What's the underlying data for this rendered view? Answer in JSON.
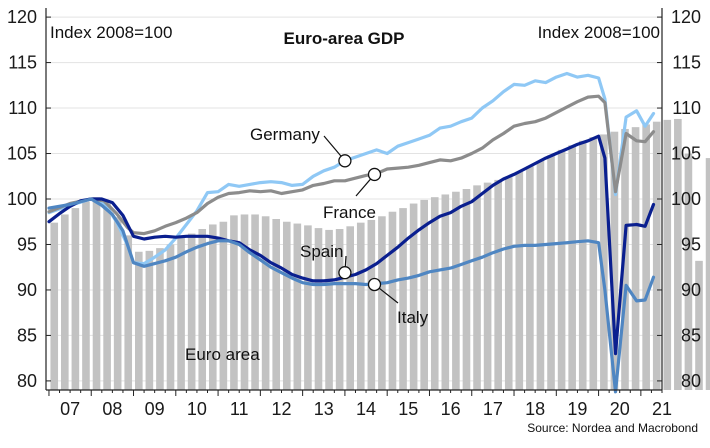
{
  "chart_data": {
    "type": "bar+line",
    "title": "Euro-area GDP",
    "index_label_left": "Index 2008=100",
    "index_label_right": "Index 2008=100",
    "source": "Source: Nordea and Macrobond",
    "ylim": [
      79,
      121
    ],
    "yticks": [
      80,
      85,
      90,
      95,
      100,
      105,
      110,
      115,
      120
    ],
    "year_labels": [
      "07",
      "08",
      "09",
      "10",
      "11",
      "12",
      "13",
      "14",
      "15",
      "16",
      "17",
      "18",
      "19",
      "20",
      "21"
    ],
    "grid": true,
    "bars": {
      "name": "Euro area",
      "label": "Euro area",
      "start": 2007.0,
      "values": [
        97.4,
        98.3,
        99.0,
        99.7,
        100.2,
        99.5,
        98.0,
        96.0,
        94.2,
        94.3,
        94.6,
        95.0,
        95.7,
        96.2,
        96.7,
        97.2,
        97.5,
        98.2,
        98.3,
        98.3,
        98.1,
        97.8,
        97.5,
        97.3,
        97.1,
        96.8,
        96.6,
        96.7,
        97.0,
        97.4,
        97.7,
        98.1,
        98.6,
        99.0,
        99.5,
        99.9,
        100.2,
        100.5,
        100.8,
        101.1,
        101.5,
        101.8,
        102.1,
        102.4,
        103.0,
        103.6,
        104.2,
        104.8,
        105.4,
        105.9,
        106.4,
        106.8,
        107.1,
        107.4,
        107.7,
        107.9,
        108.2,
        108.5,
        108.7,
        108.8,
        105.0,
        93.2,
        104.5,
        104.0,
        103.7,
        103.5
      ]
    },
    "series": [
      {
        "name": "Germany",
        "label": "Germany",
        "color": "#8fc8f5",
        "points": [
          [
            2007.0,
            98.5
          ],
          [
            2007.5,
            99.3
          ],
          [
            2008.0,
            100.0
          ],
          [
            2008.3,
            99.6
          ],
          [
            2008.6,
            97.5
          ],
          [
            2008.85,
            95.0
          ],
          [
            2009.0,
            93.0
          ],
          [
            2009.25,
            92.9
          ],
          [
            2009.5,
            93.6
          ],
          [
            2009.75,
            94.4
          ],
          [
            2010.0,
            95.7
          ],
          [
            2010.25,
            97.2
          ],
          [
            2010.5,
            98.7
          ],
          [
            2010.75,
            100.7
          ],
          [
            2011.0,
            100.8
          ],
          [
            2011.25,
            101.6
          ],
          [
            2011.5,
            101.4
          ],
          [
            2011.75,
            101.6
          ],
          [
            2012.0,
            101.8
          ],
          [
            2012.25,
            101.9
          ],
          [
            2012.5,
            101.8
          ],
          [
            2012.75,
            101.5
          ],
          [
            2013.0,
            101.6
          ],
          [
            2013.25,
            102.5
          ],
          [
            2013.5,
            103.1
          ],
          [
            2013.75,
            103.5
          ],
          [
            2014.0,
            104.2
          ],
          [
            2014.5,
            105.0
          ],
          [
            2014.75,
            105.4
          ],
          [
            2015.0,
            105.0
          ],
          [
            2015.25,
            105.8
          ],
          [
            2015.5,
            106.2
          ],
          [
            2015.75,
            106.6
          ],
          [
            2016.0,
            107.0
          ],
          [
            2016.25,
            107.8
          ],
          [
            2016.5,
            108.0
          ],
          [
            2016.75,
            108.5
          ],
          [
            2017.0,
            108.9
          ],
          [
            2017.25,
            110.0
          ],
          [
            2017.5,
            110.8
          ],
          [
            2017.75,
            111.8
          ],
          [
            2018.0,
            112.6
          ],
          [
            2018.25,
            112.5
          ],
          [
            2018.5,
            113.0
          ],
          [
            2018.75,
            112.8
          ],
          [
            2019.0,
            113.4
          ],
          [
            2019.25,
            113.8
          ],
          [
            2019.5,
            113.4
          ],
          [
            2019.75,
            113.6
          ],
          [
            2020.0,
            113.3
          ],
          [
            2020.15,
            111.0
          ],
          [
            2020.4,
            100.5
          ],
          [
            2020.65,
            109.0
          ],
          [
            2020.9,
            109.7
          ],
          [
            2021.1,
            108.0
          ],
          [
            2021.3,
            109.4
          ]
        ]
      },
      {
        "name": "France",
        "label": "France",
        "color": "#8c8c8c",
        "points": [
          [
            2007.0,
            98.6
          ],
          [
            2007.5,
            99.5
          ],
          [
            2008.0,
            100.0
          ],
          [
            2008.3,
            99.8
          ],
          [
            2008.6,
            98.4
          ],
          [
            2008.85,
            96.9
          ],
          [
            2009.0,
            96.3
          ],
          [
            2009.25,
            96.2
          ],
          [
            2009.5,
            96.5
          ],
          [
            2009.75,
            97.0
          ],
          [
            2010.0,
            97.4
          ],
          [
            2010.25,
            97.9
          ],
          [
            2010.5,
            98.5
          ],
          [
            2010.75,
            99.5
          ],
          [
            2011.0,
            100.2
          ],
          [
            2011.25,
            100.6
          ],
          [
            2011.5,
            100.7
          ],
          [
            2011.75,
            100.9
          ],
          [
            2012.0,
            100.8
          ],
          [
            2012.25,
            100.9
          ],
          [
            2012.5,
            100.6
          ],
          [
            2012.75,
            100.8
          ],
          [
            2013.0,
            101.0
          ],
          [
            2013.25,
            101.5
          ],
          [
            2013.5,
            101.7
          ],
          [
            2013.75,
            102.0
          ],
          [
            2014.0,
            102.0
          ],
          [
            2014.5,
            102.6
          ],
          [
            2014.75,
            102.8
          ],
          [
            2015.0,
            103.3
          ],
          [
            2015.25,
            103.4
          ],
          [
            2015.5,
            103.5
          ],
          [
            2015.75,
            103.7
          ],
          [
            2016.0,
            104.0
          ],
          [
            2016.25,
            104.3
          ],
          [
            2016.5,
            104.2
          ],
          [
            2016.75,
            104.5
          ],
          [
            2017.0,
            105.0
          ],
          [
            2017.25,
            105.6
          ],
          [
            2017.5,
            106.5
          ],
          [
            2017.75,
            107.2
          ],
          [
            2018.0,
            108.0
          ],
          [
            2018.25,
            108.3
          ],
          [
            2018.5,
            108.5
          ],
          [
            2018.75,
            108.9
          ],
          [
            2019.0,
            109.5
          ],
          [
            2019.25,
            110.1
          ],
          [
            2019.5,
            110.7
          ],
          [
            2019.75,
            111.2
          ],
          [
            2020.0,
            111.3
          ],
          [
            2020.15,
            110.6
          ],
          [
            2020.4,
            100.8
          ],
          [
            2020.65,
            107.2
          ],
          [
            2020.9,
            106.4
          ],
          [
            2021.1,
            106.3
          ],
          [
            2021.3,
            107.4
          ]
        ]
      },
      {
        "name": "Spain",
        "label": "Spain",
        "color": "#0a1f8f",
        "points": [
          [
            2007.0,
            97.5
          ],
          [
            2007.25,
            98.4
          ],
          [
            2007.5,
            99.2
          ],
          [
            2007.75,
            99.8
          ],
          [
            2008.0,
            100.0
          ],
          [
            2008.25,
            100.0
          ],
          [
            2008.5,
            99.6
          ],
          [
            2008.75,
            98.2
          ],
          [
            2009.0,
            95.9
          ],
          [
            2009.25,
            95.6
          ],
          [
            2009.5,
            95.8
          ],
          [
            2009.75,
            95.9
          ],
          [
            2010.0,
            95.8
          ],
          [
            2010.25,
            95.9
          ],
          [
            2010.5,
            95.9
          ],
          [
            2010.75,
            95.9
          ],
          [
            2011.0,
            95.7
          ],
          [
            2011.25,
            95.4
          ],
          [
            2011.5,
            95.2
          ],
          [
            2011.75,
            94.4
          ],
          [
            2012.0,
            93.8
          ],
          [
            2012.25,
            93.0
          ],
          [
            2012.5,
            92.4
          ],
          [
            2012.75,
            91.7
          ],
          [
            2013.0,
            91.3
          ],
          [
            2013.25,
            91.0
          ],
          [
            2013.5,
            91.0
          ],
          [
            2013.75,
            91.1
          ],
          [
            2014.0,
            91.4
          ],
          [
            2014.25,
            91.7
          ],
          [
            2014.5,
            92.2
          ],
          [
            2014.75,
            92.9
          ],
          [
            2015.0,
            93.8
          ],
          [
            2015.25,
            94.7
          ],
          [
            2015.5,
            95.7
          ],
          [
            2015.75,
            96.6
          ],
          [
            2016.0,
            97.4
          ],
          [
            2016.25,
            98.1
          ],
          [
            2016.5,
            98.5
          ],
          [
            2016.75,
            99.2
          ],
          [
            2017.0,
            99.7
          ],
          [
            2017.25,
            100.6
          ],
          [
            2017.5,
            101.5
          ],
          [
            2017.75,
            102.2
          ],
          [
            2018.0,
            102.7
          ],
          [
            2018.25,
            103.3
          ],
          [
            2018.5,
            103.9
          ],
          [
            2018.75,
            104.5
          ],
          [
            2019.0,
            105.0
          ],
          [
            2019.25,
            105.5
          ],
          [
            2019.5,
            106.0
          ],
          [
            2019.75,
            106.4
          ],
          [
            2020.0,
            106.9
          ],
          [
            2020.15,
            104.5
          ],
          [
            2020.4,
            83.0
          ],
          [
            2020.65,
            97.1
          ],
          [
            2020.9,
            97.2
          ],
          [
            2021.1,
            97.0
          ],
          [
            2021.3,
            99.4
          ]
        ]
      },
      {
        "name": "Italy",
        "label": "Italy",
        "color": "#4f86c2",
        "points": [
          [
            2007.0,
            99.0
          ],
          [
            2007.5,
            99.4
          ],
          [
            2008.0,
            100.0
          ],
          [
            2008.25,
            99.3
          ],
          [
            2008.5,
            98.3
          ],
          [
            2008.75,
            96.5
          ],
          [
            2009.0,
            93.0
          ],
          [
            2009.25,
            92.6
          ],
          [
            2009.5,
            92.9
          ],
          [
            2009.75,
            93.2
          ],
          [
            2010.0,
            93.6
          ],
          [
            2010.25,
            94.2
          ],
          [
            2010.5,
            94.7
          ],
          [
            2010.75,
            95.1
          ],
          [
            2011.0,
            95.4
          ],
          [
            2011.25,
            95.4
          ],
          [
            2011.5,
            95.0
          ],
          [
            2011.75,
            94.1
          ],
          [
            2012.0,
            93.3
          ],
          [
            2012.25,
            92.5
          ],
          [
            2012.5,
            91.9
          ],
          [
            2012.75,
            91.3
          ],
          [
            2013.0,
            90.8
          ],
          [
            2013.25,
            90.6
          ],
          [
            2013.5,
            90.6
          ],
          [
            2013.75,
            90.7
          ],
          [
            2014.0,
            90.7
          ],
          [
            2014.25,
            90.7
          ],
          [
            2014.5,
            90.6
          ],
          [
            2014.75,
            90.7
          ],
          [
            2015.0,
            90.8
          ],
          [
            2015.25,
            91.1
          ],
          [
            2015.5,
            91.3
          ],
          [
            2015.75,
            91.6
          ],
          [
            2016.0,
            92.0
          ],
          [
            2016.25,
            92.2
          ],
          [
            2016.5,
            92.4
          ],
          [
            2016.75,
            92.8
          ],
          [
            2017.0,
            93.2
          ],
          [
            2017.25,
            93.6
          ],
          [
            2017.5,
            94.1
          ],
          [
            2017.75,
            94.5
          ],
          [
            2018.0,
            94.8
          ],
          [
            2018.25,
            94.9
          ],
          [
            2018.5,
            94.9
          ],
          [
            2018.75,
            95.0
          ],
          [
            2019.0,
            95.1
          ],
          [
            2019.25,
            95.2
          ],
          [
            2019.5,
            95.3
          ],
          [
            2019.75,
            95.4
          ],
          [
            2020.0,
            95.2
          ],
          [
            2020.15,
            90.0
          ],
          [
            2020.4,
            78.8
          ],
          [
            2020.65,
            90.5
          ],
          [
            2020.9,
            88.8
          ],
          [
            2021.1,
            88.9
          ],
          [
            2021.3,
            91.4
          ]
        ]
      }
    ],
    "annotations": [
      {
        "series": "Germany",
        "text": "Germany",
        "marker": [
          2014.0,
          104.2
        ]
      },
      {
        "series": "France",
        "text": "France",
        "marker": [
          2014.7,
          102.7
        ]
      },
      {
        "series": "Spain",
        "text": "Spain",
        "marker": [
          2014.0,
          91.9
        ]
      },
      {
        "series": "Italy",
        "text": "Italy",
        "marker": [
          2014.7,
          90.6
        ]
      }
    ]
  }
}
